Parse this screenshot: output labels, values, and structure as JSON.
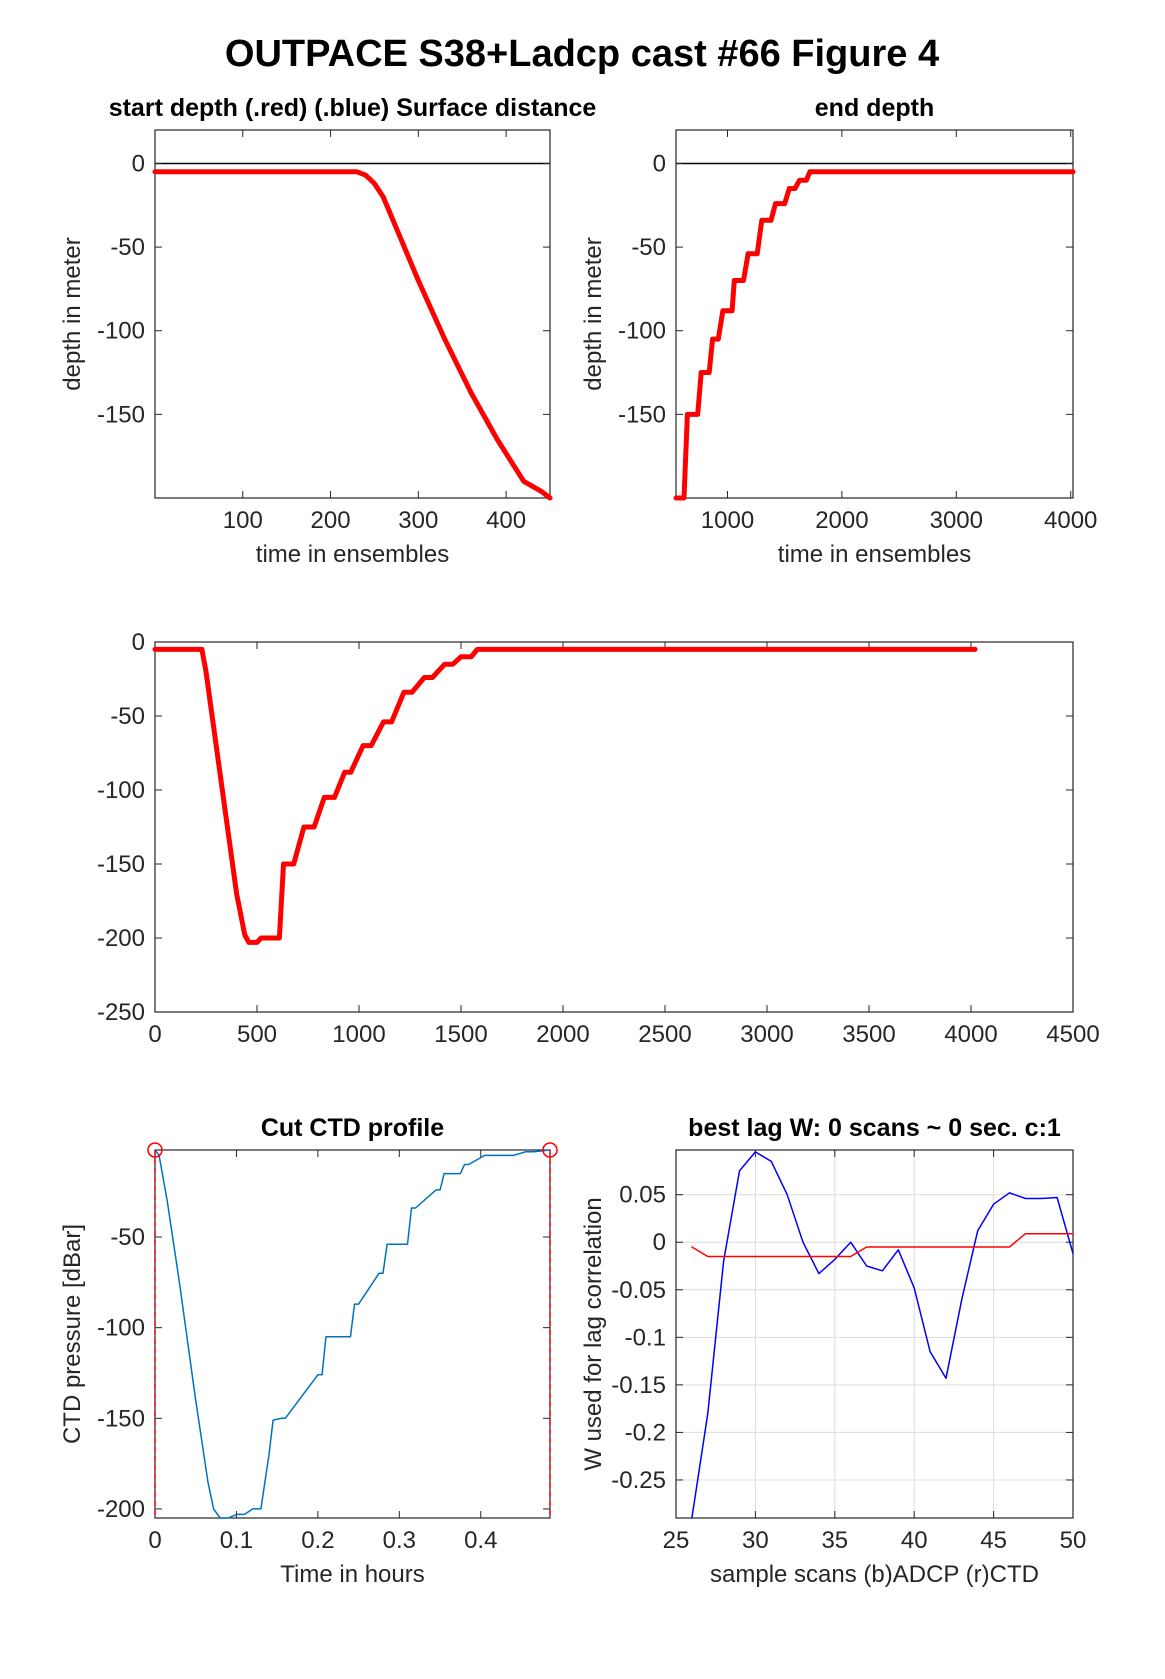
{
  "figure": {
    "title": "OUTPACE S38+Ladcp cast #66   Figure 4"
  },
  "chart_data": [
    {
      "id": "p1",
      "type": "line",
      "title": "start depth (.red) (.blue) Surface distance",
      "xlabel": "time in ensembles",
      "ylabel": "depth in meter",
      "xlim": [
        0,
        450
      ],
      "ylim": [
        -200,
        20
      ],
      "xticks": [
        100,
        200,
        300,
        400
      ],
      "yticks": [
        0,
        -50,
        -100,
        -150
      ],
      "xtick_labels": [
        "100",
        "200",
        "300",
        "400"
      ],
      "ytick_labels": [
        "0",
        "-50",
        "-100",
        "-150"
      ],
      "zero_line": true,
      "grid": false,
      "series": [
        {
          "color": "#ff0000",
          "x": [
            0,
            50,
            100,
            150,
            200,
            230,
            240,
            250,
            260,
            280,
            300,
            330,
            360,
            390,
            420,
            440,
            450
          ],
          "y": [
            -5,
            -5,
            -5,
            -5,
            -5,
            -5,
            -7,
            -12,
            -20,
            -45,
            -70,
            -105,
            -137,
            -165,
            -190,
            -196,
            -200
          ]
        }
      ]
    },
    {
      "id": "p2",
      "type": "line",
      "title": "end depth",
      "xlabel": "time in ensembles",
      "ylabel": "depth in meter",
      "xlim": [
        550,
        4020
      ],
      "ylim": [
        -200,
        20
      ],
      "xticks": [
        1000,
        2000,
        3000,
        4000
      ],
      "yticks": [
        0,
        -50,
        -100,
        -150
      ],
      "xtick_labels": [
        "1000",
        "2000",
        "3000",
        "4000"
      ],
      "ytick_labels": [
        "0",
        "-50",
        "-100",
        "-150"
      ],
      "zero_line": true,
      "grid": false,
      "series": [
        {
          "color": "#ff0000",
          "x": [
            550,
            620,
            650,
            680,
            740,
            770,
            840,
            870,
            920,
            960,
            1040,
            1060,
            1140,
            1180,
            1260,
            1300,
            1380,
            1420,
            1500,
            1540,
            1590,
            1630,
            1690,
            1720,
            1780,
            1810,
            1870,
            1900,
            2500,
            3000,
            3500,
            4020
          ],
          "y": [
            -200,
            -200,
            -150,
            -150,
            -150,
            -125,
            -125,
            -105,
            -105,
            -88,
            -88,
            -70,
            -70,
            -54,
            -54,
            -34,
            -34,
            -24,
            -24,
            -15,
            -15,
            -10,
            -10,
            -5,
            -5,
            -5,
            -5,
            -5,
            -5,
            -5,
            -5,
            -5
          ]
        }
      ]
    },
    {
      "id": "p3",
      "type": "line",
      "title": "",
      "xlabel": "",
      "ylabel": "",
      "xlim": [
        0,
        4500
      ],
      "ylim": [
        -250,
        0
      ],
      "xticks": [
        0,
        500,
        1000,
        1500,
        2000,
        2500,
        3000,
        3500,
        4000,
        4500
      ],
      "yticks": [
        0,
        -50,
        -100,
        -150,
        -200,
        -250
      ],
      "xtick_labels": [
        "0",
        "500",
        "1000",
        "1500",
        "2000",
        "2500",
        "3000",
        "3500",
        "4000",
        "4500"
      ],
      "ytick_labels": [
        "0",
        "-50",
        "-100",
        "-150",
        "-200",
        "-250"
      ],
      "zero_line": false,
      "grid": false,
      "series": [
        {
          "color": "#ff0000",
          "x": [
            0,
            230,
            250,
            300,
            350,
            400,
            440,
            460,
            480,
            500,
            520,
            560,
            610,
            630,
            680,
            730,
            780,
            830,
            880,
            930,
            960,
            1020,
            1060,
            1120,
            1160,
            1220,
            1260,
            1320,
            1360,
            1420,
            1460,
            1500,
            1550,
            1580,
            1650,
            1700,
            1740,
            1790,
            1820,
            1880,
            1920,
            2500,
            3000,
            3500,
            4020
          ],
          "y": [
            -5,
            -5,
            -20,
            -70,
            -120,
            -170,
            -198,
            -203,
            -203,
            -203,
            -200,
            -200,
            -200,
            -150,
            -150,
            -125,
            -125,
            -105,
            -105,
            -88,
            -88,
            -70,
            -70,
            -54,
            -54,
            -34,
            -34,
            -24,
            -24,
            -15,
            -15,
            -10,
            -10,
            -5,
            -5,
            -5,
            -5,
            -5,
            -5,
            -5,
            -5,
            -5,
            -5,
            -5,
            -5
          ]
        }
      ]
    },
    {
      "id": "p4",
      "type": "line",
      "title": "Cut CTD profile",
      "xlabel": "Time in hours",
      "ylabel": "CTD pressure [dBar]",
      "xlim": [
        0,
        0.485
      ],
      "ylim": [
        -205,
        -2
      ],
      "xticks": [
        0,
        0.1,
        0.2,
        0.3,
        0.4
      ],
      "yticks": [
        -50,
        -100,
        -150,
        -200
      ],
      "xtick_labels": [
        "0",
        "0.1",
        "0.2",
        "0.3",
        "0.4"
      ],
      "ytick_labels": [
        "-50",
        "-100",
        "-150",
        "-200"
      ],
      "zero_line": false,
      "grid": false,
      "endpoint_markers": [
        [
          0,
          -2
        ],
        [
          0.485,
          -2
        ]
      ],
      "series": [
        {
          "color": "#0072bd",
          "x": [
            0,
            0.005,
            0.015,
            0.03,
            0.05,
            0.065,
            0.072,
            0.08,
            0.09,
            0.1,
            0.11,
            0.12,
            0.13,
            0.14,
            0.145,
            0.155,
            0.16,
            0.2,
            0.205,
            0.21,
            0.24,
            0.245,
            0.25,
            0.275,
            0.28,
            0.285,
            0.31,
            0.315,
            0.32,
            0.345,
            0.35,
            0.355,
            0.375,
            0.38,
            0.385,
            0.405,
            0.41,
            0.415,
            0.43,
            0.435,
            0.44,
            0.455,
            0.46,
            0.465,
            0.485
          ],
          "y": [
            -2,
            -5,
            -30,
            -75,
            -140,
            -185,
            -200,
            -205,
            -205,
            -203,
            -203,
            -200,
            -200,
            -170,
            -151,
            -150,
            -150,
            -126,
            -126,
            -105,
            -105,
            -87,
            -87,
            -70,
            -70,
            -54,
            -54,
            -34,
            -34,
            -24,
            -24,
            -15,
            -15,
            -10,
            -10,
            -5,
            -5,
            -5,
            -5,
            -5,
            -5,
            -3,
            -3,
            -3,
            -2
          ]
        }
      ]
    },
    {
      "id": "p5",
      "type": "line",
      "title": "best lag W: 0 scans ~ 0 sec.  c:1",
      "xlabel": "sample scans (b)ADCP (r)CTD",
      "ylabel": "W used for lag correlation",
      "xlim": [
        25,
        50
      ],
      "ylim": [
        -0.29,
        0.097
      ],
      "xticks": [
        25,
        30,
        35,
        40,
        45,
        50
      ],
      "yticks": [
        0.05,
        0,
        -0.05,
        -0.1,
        -0.15,
        -0.2,
        -0.25
      ],
      "xtick_labels": [
        "25",
        "30",
        "35",
        "40",
        "45",
        "50"
      ],
      "ytick_labels": [
        "0.05",
        "0",
        "-0.05",
        "-0.1",
        "-0.15",
        "-0.2",
        "-0.25"
      ],
      "zero_line": false,
      "grid": true,
      "series": [
        {
          "color": "#0000ff",
          "x": [
            26,
            27,
            28,
            29,
            30,
            31,
            32,
            33,
            34,
            35,
            36,
            37,
            38,
            39,
            40,
            41,
            42,
            43,
            44,
            45,
            46,
            47,
            48,
            49,
            50
          ],
          "y": [
            -0.29,
            -0.18,
            -0.02,
            0.075,
            0.095,
            0.085,
            0.05,
            0.0,
            -0.033,
            -0.018,
            0.0,
            -0.025,
            -0.03,
            -0.008,
            -0.048,
            -0.115,
            -0.143,
            -0.06,
            0.012,
            0.04,
            0.052,
            0.046,
            0.046,
            0.047,
            -0.012
          ]
        },
        {
          "color": "#ff0000",
          "x": [
            26,
            27,
            28,
            29,
            30,
            31,
            32,
            33,
            34,
            35,
            36,
            37,
            38,
            39,
            40,
            41,
            42,
            43,
            44,
            45,
            46,
            47,
            48,
            49,
            50
          ],
          "y": [
            -0.005,
            -0.015,
            -0.015,
            -0.015,
            -0.015,
            -0.015,
            -0.015,
            -0.015,
            -0.015,
            -0.015,
            -0.015,
            -0.005,
            -0.005,
            -0.005,
            -0.005,
            -0.005,
            -0.005,
            -0.005,
            -0.005,
            -0.005,
            -0.005,
            0.009,
            0.009,
            0.009,
            0.009
          ]
        }
      ]
    }
  ]
}
